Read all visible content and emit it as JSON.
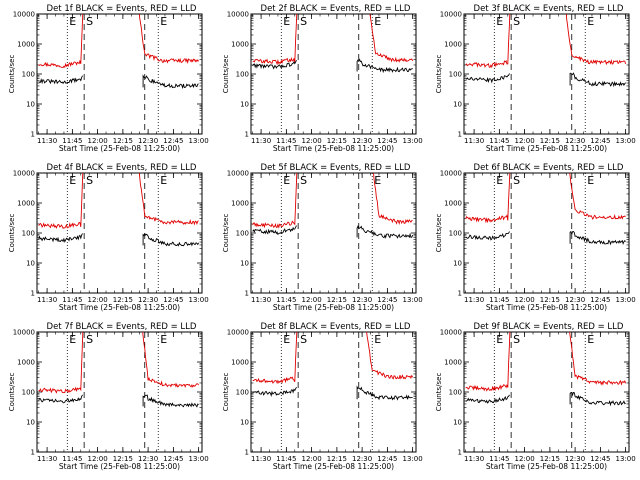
{
  "figure": {
    "background": "#ffffff",
    "events_color": "#000000",
    "lld_color": "#e00000"
  },
  "chart_data": [
    {
      "type": "line",
      "title": "Det 1f BLACK = Events, RED = LLD",
      "xlabel": "Start Time (25-Feb-08 11:25:00)",
      "ylabel": "Counts/sec",
      "yscale": "log",
      "ylim": [
        1,
        10000
      ],
      "xlim_minutes": [
        -1,
        97
      ],
      "x_ticks": [
        "11:30",
        "11:45",
        "12:00",
        "12:15",
        "12:30",
        "12:45",
        "13:00"
      ],
      "y_ticks": [
        "1",
        "10",
        "100",
        "1000",
        "10000"
      ],
      "markers": [
        {
          "label": "E",
          "style": "dotted",
          "minute": 17
        },
        {
          "label": "S",
          "style": "dashed",
          "minute": 27
        },
        {
          "label": "",
          "style": "dashed",
          "minute": 63
        },
        {
          "label": "E",
          "style": "dotted",
          "minute": 71
        }
      ],
      "events": {
        "pre": 55,
        "post": 65,
        "flare_start": 26,
        "flare_end": 62
      },
      "lld": {
        "pre": 200,
        "post": 280,
        "flare_start": 25,
        "flare_end": 60
      }
    },
    {
      "type": "line",
      "title": "Det 2f BLACK = Events, RED = LLD",
      "xlabel": "Start Time (25-Feb-08 11:25:00)",
      "ylabel": "Counts/sec",
      "yscale": "log",
      "ylim": [
        1,
        10000
      ],
      "xlim_minutes": [
        -1,
        97
      ],
      "x_ticks": [
        "11:30",
        "11:45",
        "12:00",
        "12:15",
        "12:30",
        "12:45",
        "13:00"
      ],
      "y_ticks": [
        "1",
        "10",
        "100",
        "1000",
        "10000"
      ],
      "markers": [
        {
          "label": "E",
          "style": "dotted",
          "minute": 17
        },
        {
          "label": "S",
          "style": "dashed",
          "minute": 27
        },
        {
          "label": "",
          "style": "dashed",
          "minute": 63
        },
        {
          "label": "E",
          "style": "dotted",
          "minute": 71
        }
      ],
      "events": {
        "pre": 180,
        "post": 220,
        "flare_start": 26,
        "flare_end": 62
      },
      "lld": {
        "pre": 260,
        "post": 300,
        "flare_start": 25,
        "flare_end": 70
      }
    },
    {
      "type": "line",
      "title": "Det 3f BLACK = Events, RED = LLD",
      "xlabel": "Start Time (25-Feb-08 11:25:00)",
      "ylabel": "Counts/sec",
      "yscale": "log",
      "ylim": [
        1,
        10000
      ],
      "xlim_minutes": [
        -1,
        97
      ],
      "x_ticks": [
        "11:30",
        "11:45",
        "12:00",
        "12:15",
        "12:30",
        "12:45",
        "13:00"
      ],
      "y_ticks": [
        "1",
        "10",
        "100",
        "1000",
        "10000"
      ],
      "markers": [
        {
          "label": "E",
          "style": "dotted",
          "minute": 17
        },
        {
          "label": "S",
          "style": "dashed",
          "minute": 27
        },
        {
          "label": "",
          "style": "dashed",
          "minute": 63
        },
        {
          "label": "E",
          "style": "dotted",
          "minute": 71
        }
      ],
      "events": {
        "pre": 65,
        "post": 75,
        "flare_start": 26,
        "flare_end": 62
      },
      "lld": {
        "pre": 200,
        "post": 250,
        "flare_start": 25,
        "flare_end": 60
      }
    },
    {
      "type": "line",
      "title": "Det 4f BLACK = Events, RED = LLD",
      "xlabel": "Start Time (25-Feb-08 11:25:00)",
      "ylabel": "Counts/sec",
      "yscale": "log",
      "ylim": [
        1,
        10000
      ],
      "xlim_minutes": [
        -1,
        97
      ],
      "x_ticks": [
        "11:30",
        "11:45",
        "12:00",
        "12:15",
        "12:30",
        "12:45",
        "13:00"
      ],
      "y_ticks": [
        "1",
        "10",
        "100",
        "1000",
        "10000"
      ],
      "markers": [
        {
          "label": "E",
          "style": "dotted",
          "minute": 17
        },
        {
          "label": "S",
          "style": "dashed",
          "minute": 27
        },
        {
          "label": "",
          "style": "dashed",
          "minute": 63
        },
        {
          "label": "E",
          "style": "dotted",
          "minute": 71
        }
      ],
      "events": {
        "pre": 60,
        "post": 70,
        "flare_start": 26,
        "flare_end": 62
      },
      "lld": {
        "pre": 170,
        "post": 230,
        "flare_start": 25,
        "flare_end": 60
      }
    },
    {
      "type": "line",
      "title": "Det 5f BLACK = Events, RED = LLD",
      "xlabel": "Start Time (25-Feb-08 11:25:00)",
      "ylabel": "Counts/sec",
      "yscale": "log",
      "ylim": [
        1,
        10000
      ],
      "xlim_minutes": [
        -1,
        97
      ],
      "x_ticks": [
        "11:30",
        "11:45",
        "12:00",
        "12:15",
        "12:30",
        "12:45",
        "13:00"
      ],
      "y_ticks": [
        "1",
        "10",
        "100",
        "1000",
        "10000"
      ],
      "markers": [
        {
          "label": "E",
          "style": "dotted",
          "minute": 17
        },
        {
          "label": "S",
          "style": "dashed",
          "minute": 27
        },
        {
          "label": "",
          "style": "dashed",
          "minute": 63
        },
        {
          "label": "E",
          "style": "dotted",
          "minute": 71
        }
      ],
      "events": {
        "pre": 110,
        "post": 130,
        "flare_start": 26,
        "flare_end": 62
      },
      "lld": {
        "pre": 180,
        "post": 240,
        "flare_start": 25,
        "flare_end": 72
      }
    },
    {
      "type": "line",
      "title": "Det 6f BLACK = Events, RED = LLD",
      "xlabel": "Start Time (25-Feb-08 11:25:00)",
      "ylabel": "Counts/sec",
      "yscale": "log",
      "ylim": [
        1,
        10000
      ],
      "xlim_minutes": [
        -1,
        97
      ],
      "x_ticks": [
        "11:30",
        "11:45",
        "12:00",
        "12:15",
        "12:30",
        "12:45",
        "13:00"
      ],
      "y_ticks": [
        "1",
        "10",
        "100",
        "1000",
        "10000"
      ],
      "markers": [
        {
          "label": "E",
          "style": "dotted",
          "minute": 17
        },
        {
          "label": "S",
          "style": "dashed",
          "minute": 27
        },
        {
          "label": "",
          "style": "dashed",
          "minute": 63
        },
        {
          "label": "E",
          "style": "dotted",
          "minute": 71
        }
      ],
      "events": {
        "pre": 70,
        "post": 80,
        "flare_start": 26,
        "flare_end": 62
      },
      "lld": {
        "pre": 280,
        "post": 340,
        "flare_start": 25,
        "flare_end": 62
      }
    },
    {
      "type": "line",
      "title": "Det 7f BLACK = Events, RED = LLD",
      "xlabel": "Start Time (25-Feb-08 11:25:00)",
      "ylabel": "Counts/sec",
      "yscale": "log",
      "ylim": [
        1,
        10000
      ],
      "xlim_minutes": [
        -1,
        97
      ],
      "x_ticks": [
        "11:30",
        "11:45",
        "12:00",
        "12:15",
        "12:30",
        "12:45",
        "13:00"
      ],
      "y_ticks": [
        "1",
        "10",
        "100",
        "1000",
        "10000"
      ],
      "markers": [
        {
          "label": "E",
          "style": "dotted",
          "minute": 17
        },
        {
          "label": "S",
          "style": "dashed",
          "minute": 27
        },
        {
          "label": "",
          "style": "dashed",
          "minute": 63
        },
        {
          "label": "E",
          "style": "dotted",
          "minute": 71
        }
      ],
      "events": {
        "pre": 50,
        "post": 60,
        "flare_start": 26,
        "flare_end": 62
      },
      "lld": {
        "pre": 110,
        "post": 170,
        "flare_start": 25,
        "flare_end": 62
      }
    },
    {
      "type": "line",
      "title": "Det 8f BLACK = Events, RED = LLD",
      "xlabel": "Start Time (25-Feb-08 11:25:00)",
      "ylabel": "Counts/sec",
      "yscale": "log",
      "ylim": [
        1,
        10000
      ],
      "xlim_minutes": [
        -1,
        97
      ],
      "x_ticks": [
        "11:30",
        "11:45",
        "12:00",
        "12:15",
        "12:30",
        "12:45",
        "13:00"
      ],
      "y_ticks": [
        "1",
        "10",
        "100",
        "1000",
        "10000"
      ],
      "markers": [
        {
          "label": "E",
          "style": "dotted",
          "minute": 17
        },
        {
          "label": "S",
          "style": "dashed",
          "minute": 27
        },
        {
          "label": "",
          "style": "dashed",
          "minute": 63
        },
        {
          "label": "E",
          "style": "dotted",
          "minute": 71
        }
      ],
      "events": {
        "pre": 90,
        "post": 105,
        "flare_start": 26,
        "flare_end": 62
      },
      "lld": {
        "pre": 230,
        "post": 320,
        "flare_start": 25,
        "flare_end": 68
      }
    },
    {
      "type": "line",
      "title": "Det 9f BLACK = Events, RED = LLD",
      "xlabel": "Start Time (25-Feb-08 11:25:00)",
      "ylabel": "Counts/sec",
      "yscale": "log",
      "ylim": [
        1,
        10000
      ],
      "xlim_minutes": [
        -1,
        97
      ],
      "x_ticks": [
        "11:30",
        "11:45",
        "12:00",
        "12:15",
        "12:30",
        "12:45",
        "13:00"
      ],
      "y_ticks": [
        "1",
        "10",
        "100",
        "1000",
        "10000"
      ],
      "markers": [
        {
          "label": "E",
          "style": "dotted",
          "minute": 17
        },
        {
          "label": "S",
          "style": "dashed",
          "minute": 27
        },
        {
          "label": "",
          "style": "dashed",
          "minute": 63
        },
        {
          "label": "E",
          "style": "dotted",
          "minute": 71
        }
      ],
      "events": {
        "pre": 50,
        "post": 70,
        "flare_start": 26,
        "flare_end": 62
      },
      "lld": {
        "pre": 130,
        "post": 210,
        "flare_start": 25,
        "flare_end": 62
      }
    }
  ]
}
